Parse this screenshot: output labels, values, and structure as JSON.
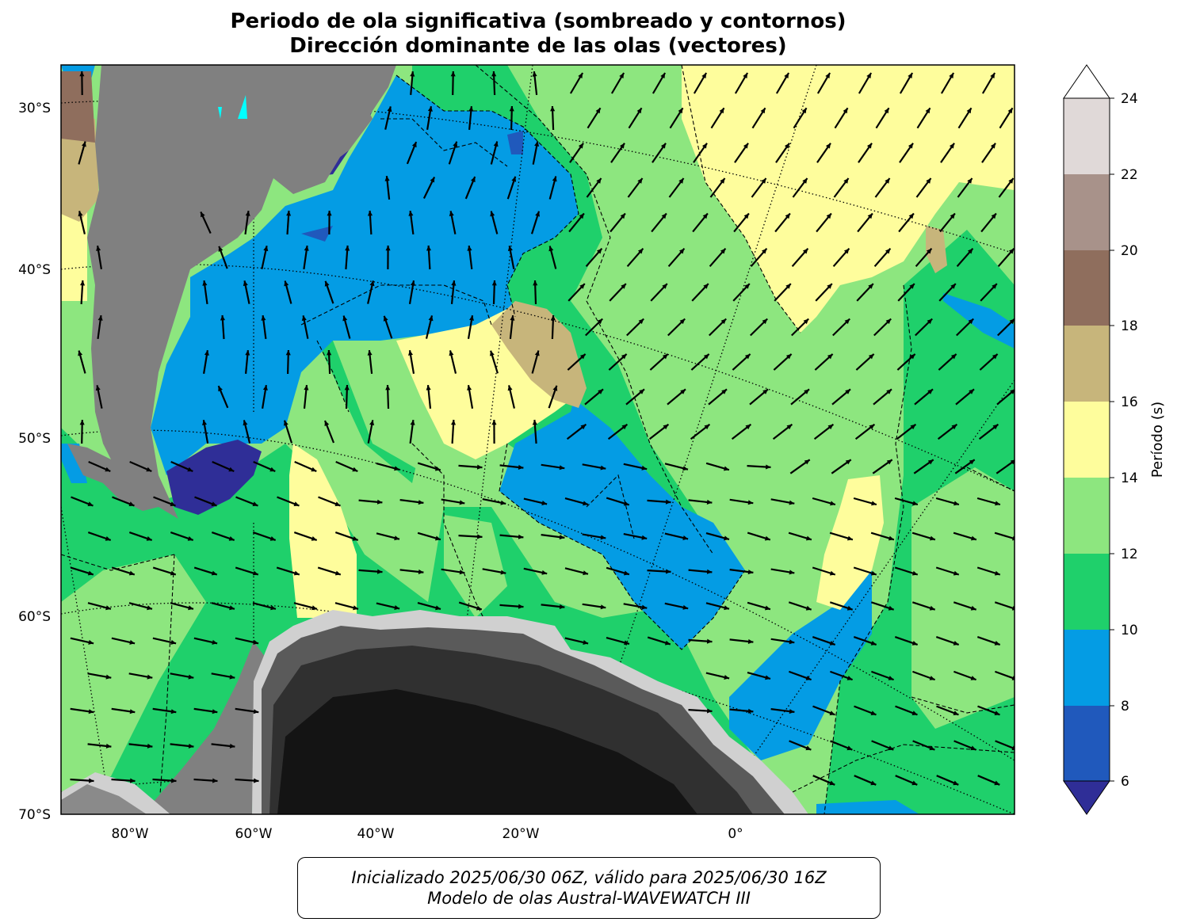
{
  "title_line1": "Periodo de ola significativa (sombreado y contornos)",
  "title_line2": "Dirección dominante de las olas (vectores)",
  "lat_labels": [
    "30°S",
    "40°S",
    "50°S",
    "60°S",
    "70°S"
  ],
  "lon_labels": [
    "80°W",
    "60°W",
    "40°W",
    "20°W",
    "0°"
  ],
  "colorbar": {
    "label": "Período (s)",
    "ticks": [
      "6",
      "8",
      "10",
      "12",
      "14",
      "16",
      "18",
      "20",
      "22",
      "24"
    ],
    "colors": [
      "#2f2e97",
      "#2059bc",
      "#049ce4",
      "#1fd06b",
      "#8de67f",
      "#fefd9c",
      "#c7b57b",
      "#8f6e5d",
      "#a8928a",
      "#e0d9d8",
      "#ffffff"
    ]
  },
  "caption_line1": "Inicializado 2025/06/30 06Z, válido para 2025/06/30 16Z",
  "caption_line2": "Modelo de olas Austral-WAVEWATCH III",
  "colors": {
    "land": "#808080",
    "ice_dark": "#141414",
    "frame": "#000000"
  }
}
